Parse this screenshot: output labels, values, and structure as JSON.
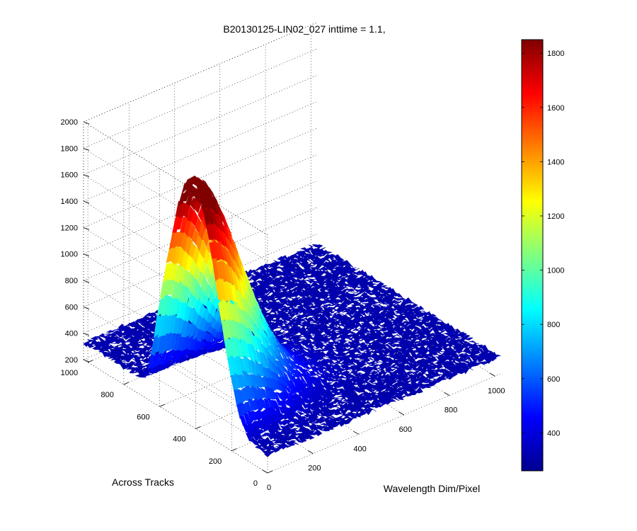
{
  "chart_data": {
    "type": "surface",
    "title": "B20130125-LIN02_027 inttime = 1.1,",
    "xlabel": "Wavelength Dim/Pixel",
    "ylabel": "Across Tracks",
    "zlabel": "",
    "xlim": [
      0,
      1024
    ],
    "ylim": [
      0,
      1024
    ],
    "zlim": [
      200,
      2000
    ],
    "x_ticks": [
      "0",
      "200",
      "400",
      "600",
      "800",
      "1000"
    ],
    "y_ticks": [
      "0",
      "200",
      "400",
      "600",
      "800",
      "1000"
    ],
    "z_ticks": [
      "200",
      "400",
      "600",
      "800",
      "1000",
      "1200",
      "1400",
      "1600",
      "1800",
      "2000"
    ],
    "grid": true,
    "colormap": "jet",
    "color_range": [
      260,
      1850
    ],
    "colorbar_ticks": [
      "400",
      "600",
      "800",
      "1000",
      "1200",
      "1400",
      "1600",
      "1800"
    ],
    "surface": {
      "baseline": 330,
      "peak_value": 1850,
      "peak_x": 0,
      "peak_y": 300,
      "description_values": {
        "background_level": 330,
        "secondary_ridge_value": 700
      }
    }
  }
}
